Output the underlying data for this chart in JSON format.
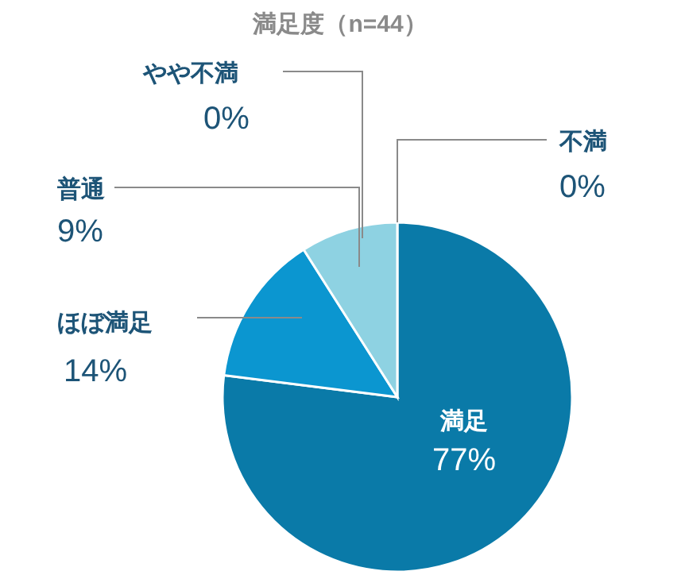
{
  "chart_data": {
    "type": "pie",
    "title": "満足度（n=44）",
    "categories": [
      "満足",
      "ほぼ満足",
      "普通",
      "やや不満",
      "不満"
    ],
    "values": [
      77,
      14,
      9,
      0,
      0
    ],
    "value_labels": [
      "77%",
      "14%",
      "9%",
      "0%",
      "0%"
    ],
    "colors": [
      "#0a7aa8",
      "#0b96d0",
      "#8ed2e2",
      "#5bb8d6",
      "#1a5f85"
    ],
    "legend": false
  }
}
